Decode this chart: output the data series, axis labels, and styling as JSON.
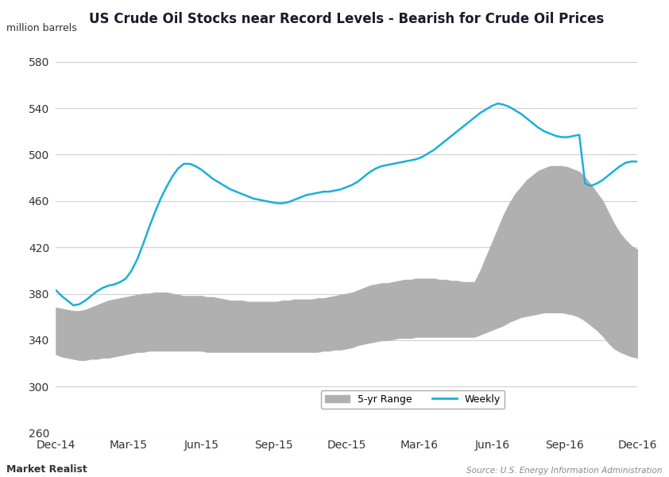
{
  "title": "US Crude Oil Stocks near Record Levels - Bearish for Crude Oil Prices",
  "ylabel": "million barrels",
  "source": "Source: U.S. Energy Information Administration",
  "watermark": "Market Realist",
  "ylim": [
    260,
    600
  ],
  "yticks": [
    260,
    300,
    340,
    380,
    420,
    460,
    500,
    540,
    580
  ],
  "xtick_labels": [
    "Dec-14",
    "Mar-15",
    "Jun-15",
    "Sep-15",
    "Dec-15",
    "Mar-16",
    "Jun-16",
    "Sep-16",
    "Dec-16"
  ],
  "background_color": "#ffffff",
  "grid_color": "#d0d0d0",
  "line_color": "#1ab0d8",
  "fill_color": "#b0b0b0",
  "weekly_y": [
    383,
    378,
    374,
    370,
    371,
    374,
    378,
    382,
    385,
    387,
    388,
    390,
    393,
    400,
    410,
    423,
    437,
    450,
    462,
    472,
    481,
    488,
    492,
    492,
    490,
    487,
    483,
    479,
    476,
    473,
    470,
    468,
    466,
    464,
    462,
    461,
    460,
    459,
    458,
    458,
    459,
    461,
    463,
    465,
    466,
    467,
    468,
    468,
    469,
    470,
    472,
    474,
    477,
    481,
    485,
    488,
    490,
    491,
    492,
    493,
    494,
    495,
    496,
    498,
    501,
    504,
    508,
    512,
    516,
    520,
    524,
    528,
    532,
    536,
    539,
    542,
    544,
    543,
    541,
    538,
    535,
    531,
    527,
    523,
    520,
    518,
    516,
    515,
    515,
    516,
    517,
    475,
    473,
    475,
    478,
    482,
    486,
    490,
    493,
    494,
    494
  ],
  "range_upper_y": [
    368,
    367,
    366,
    365,
    365,
    366,
    368,
    370,
    372,
    374,
    375,
    376,
    377,
    378,
    379,
    380,
    380,
    381,
    381,
    381,
    380,
    379,
    378,
    378,
    378,
    378,
    377,
    377,
    376,
    375,
    374,
    374,
    374,
    373,
    373,
    373,
    373,
    373,
    373,
    374,
    374,
    375,
    375,
    375,
    375,
    376,
    376,
    377,
    378,
    379,
    380,
    381,
    383,
    385,
    387,
    388,
    389,
    389,
    390,
    391,
    392,
    392,
    393,
    393,
    393,
    393,
    392,
    392,
    391,
    391,
    390,
    390,
    390,
    400,
    412,
    424,
    436,
    448,
    458,
    466,
    472,
    478,
    482,
    486,
    488,
    490,
    490,
    490,
    489,
    487,
    485,
    480,
    474,
    467,
    460,
    450,
    440,
    432,
    426,
    421,
    418
  ],
  "range_lower_y": [
    328,
    326,
    325,
    324,
    323,
    323,
    324,
    324,
    325,
    325,
    326,
    327,
    328,
    329,
    330,
    330,
    331,
    331,
    331,
    331,
    331,
    331,
    331,
    331,
    331,
    331,
    330,
    330,
    330,
    330,
    330,
    330,
    330,
    330,
    330,
    330,
    330,
    330,
    330,
    330,
    330,
    330,
    330,
    330,
    330,
    330,
    331,
    331,
    332,
    332,
    333,
    334,
    336,
    337,
    338,
    339,
    340,
    340,
    341,
    342,
    342,
    342,
    343,
    343,
    343,
    343,
    343,
    343,
    343,
    343,
    343,
    343,
    343,
    345,
    347,
    349,
    351,
    353,
    356,
    358,
    360,
    361,
    362,
    363,
    364,
    364,
    364,
    364,
    363,
    362,
    360,
    357,
    353,
    349,
    344,
    338,
    333,
    330,
    328,
    326,
    325
  ]
}
